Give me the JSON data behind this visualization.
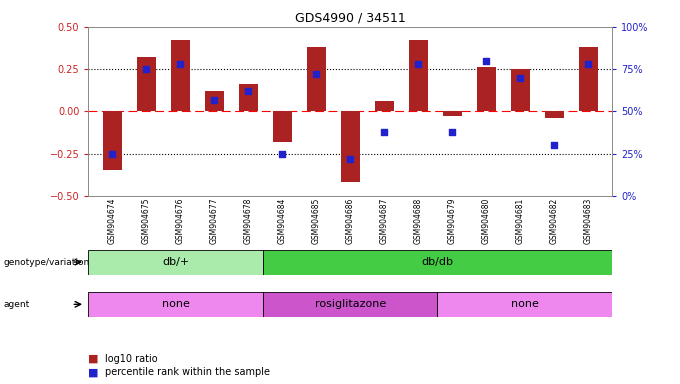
{
  "title": "GDS4990 / 34511",
  "samples": [
    "GSM904674",
    "GSM904675",
    "GSM904676",
    "GSM904677",
    "GSM904678",
    "GSM904684",
    "GSM904685",
    "GSM904686",
    "GSM904687",
    "GSM904688",
    "GSM904679",
    "GSM904680",
    "GSM904681",
    "GSM904682",
    "GSM904683"
  ],
  "log10_ratio": [
    -0.35,
    0.32,
    0.42,
    0.12,
    0.16,
    -0.18,
    0.38,
    -0.42,
    0.06,
    0.42,
    -0.03,
    0.26,
    0.25,
    -0.04,
    0.38
  ],
  "percentile_rank": [
    25,
    75,
    78,
    57,
    62,
    25,
    72,
    22,
    38,
    78,
    38,
    80,
    70,
    30,
    78
  ],
  "bar_color": "#AA2222",
  "dot_color": "#2222CC",
  "ylim_left": [
    -0.5,
    0.5
  ],
  "ylim_right": [
    0,
    100
  ],
  "yticks_left": [
    -0.5,
    -0.25,
    0,
    0.25,
    0.5
  ],
  "yticks_right": [
    0,
    25,
    50,
    75,
    100
  ],
  "genotype_groups": [
    {
      "label": "db/+",
      "start": 0,
      "end": 5,
      "color": "#AAEAAA"
    },
    {
      "label": "db/db",
      "start": 5,
      "end": 15,
      "color": "#44CC44"
    }
  ],
  "agent_groups": [
    {
      "label": "none",
      "start": 0,
      "end": 5,
      "color": "#EE88EE"
    },
    {
      "label": "rosiglitazone",
      "start": 5,
      "end": 10,
      "color": "#CC55CC"
    },
    {
      "label": "none",
      "start": 10,
      "end": 15,
      "color": "#EE88EE"
    }
  ],
  "legend_bar_label": "log10 ratio",
  "legend_dot_label": "percentile rank within the sample",
  "left_tick_color": "#CC2222",
  "right_tick_color": "#2222CC"
}
